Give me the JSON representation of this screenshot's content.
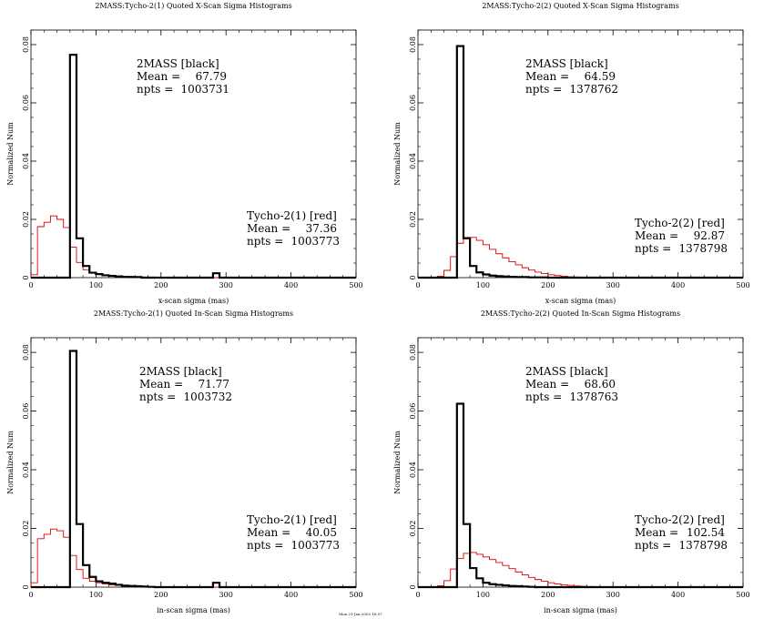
{
  "stamp": "Mon 21-Jan-2003 16:57",
  "chart_data": [
    {
      "type": "histogram",
      "title": "2MASS:Tycho-2(1) Quoted X-Scan Sigma Histograms",
      "xlabel": "x-scan sigma (mas)",
      "ylabel": "Normalized Num",
      "xlim": [
        0,
        500
      ],
      "ylim": [
        0,
        0.085
      ],
      "xticks": [
        "0",
        "100",
        "200",
        "300",
        "400",
        "500"
      ],
      "yticks": [
        "0",
        "0.02",
        "0.04",
        "0.06",
        "0.08"
      ],
      "bin_width": 10,
      "series": [
        {
          "name": "2MASS [black]",
          "color": "#000000",
          "values": [
            0,
            0,
            0,
            0,
            0,
            0,
            0.0765,
            0.0135,
            0.004,
            0.0017,
            0.0012,
            0.0008,
            0.0006,
            0.0004,
            0.0003,
            0.0002,
            0.0002,
            0,
            0,
            0,
            0,
            0,
            0,
            0,
            0,
            0,
            0,
            0,
            0.0015,
            0,
            0,
            0,
            0,
            0,
            0,
            0,
            0,
            0,
            0,
            0,
            0,
            0,
            0,
            0,
            0,
            0,
            0,
            0,
            0,
            0
          ]
        },
        {
          "name": "Tycho-2(1) [red]",
          "color": "#dd0000",
          "values": [
            0.001,
            0.0175,
            0.019,
            0.0212,
            0.02,
            0.0172,
            0.0105,
            0.0052,
            0.0027,
            0.0018,
            0.0013,
            0.001,
            0.0008,
            0.0006,
            0.0005,
            0.0004,
            0.0003,
            0.0002,
            0.0002,
            0.0001,
            0,
            0,
            0,
            0,
            0,
            0,
            0,
            0,
            0,
            0,
            0,
            0,
            0,
            0,
            0,
            0,
            0,
            0,
            0,
            0,
            0,
            0,
            0,
            0,
            0,
            0,
            0,
            0,
            0,
            0
          ]
        }
      ],
      "annotations": {
        "a": {
          "name": "2MASS [black]",
          "mean_label": "Mean   =",
          "mean": "67.79",
          "npts_label": "npts   =",
          "npts": "1003731"
        },
        "b": {
          "name": "Tycho-2(1) [red]",
          "mean_label": "Mean   =",
          "mean": "37.36",
          "npts_label": "npts   =",
          "npts": "1003773"
        }
      }
    },
    {
      "type": "histogram",
      "title": "2MASS:Tycho-2(2) Quoted X-Scan Sigma Histograms",
      "xlabel": "x-scan sigma (mas)",
      "ylabel": "Normalized Num",
      "xlim": [
        0,
        500
      ],
      "ylim": [
        0,
        0.085
      ],
      "xticks": [
        "0",
        "100",
        "200",
        "300",
        "400",
        "500"
      ],
      "yticks": [
        "0",
        "0.02",
        "0.04",
        "0.06",
        "0.08"
      ],
      "bin_width": 10,
      "series": [
        {
          "name": "2MASS [black]",
          "color": "#000000",
          "values": [
            0,
            0,
            0,
            0,
            0,
            0,
            0.0795,
            0.0135,
            0.004,
            0.0018,
            0.0011,
            0.0007,
            0.0005,
            0.0004,
            0.0003,
            0.0002,
            0.0002,
            0.0001,
            0.0001,
            0.0001,
            0,
            0,
            0,
            0,
            0,
            0,
            0,
            0,
            0,
            0,
            0,
            0,
            0,
            0,
            0,
            0,
            0,
            0,
            0,
            0,
            0,
            0,
            0,
            0,
            0,
            0,
            0,
            0,
            0,
            0
          ]
        },
        {
          "name": "Tycho-2(2) [red]",
          "color": "#dd0000",
          "values": [
            0,
            0,
            0,
            0.0005,
            0.0025,
            0.0072,
            0.0118,
            0.0138,
            0.0138,
            0.0128,
            0.0113,
            0.0097,
            0.0082,
            0.0068,
            0.0055,
            0.0044,
            0.0034,
            0.0026,
            0.0019,
            0.0014,
            0.001,
            0.0007,
            0.0005,
            0.0003,
            0.0002,
            0.0001,
            0,
            0,
            0,
            0,
            0,
            0,
            0,
            0,
            0,
            0,
            0,
            0,
            0,
            0,
            0,
            0,
            0,
            0,
            0,
            0,
            0,
            0,
            0,
            0
          ]
        }
      ],
      "annotations": {
        "a": {
          "name": "2MASS [black]",
          "mean_label": "Mean   =",
          "mean": "64.59",
          "npts_label": "npts   =",
          "npts": "1378762"
        },
        "b": {
          "name": "Tycho-2(2) [red]",
          "mean_label": "Mean   =",
          "mean": "92.87",
          "npts_label": "npts   =",
          "npts": "1378798"
        }
      }
    },
    {
      "type": "histogram",
      "title": "2MASS:Tycho-2(1) Quoted In-Scan Sigma Histograms",
      "xlabel": "in-scan sigma (mas)",
      "ylabel": "Normalized Num",
      "xlim": [
        0,
        500
      ],
      "ylim": [
        0,
        0.085
      ],
      "xticks": [
        "0",
        "100",
        "200",
        "300",
        "400",
        "500"
      ],
      "yticks": [
        "0",
        "0.02",
        "0.04",
        "0.06",
        "0.08"
      ],
      "bin_width": 10,
      "series": [
        {
          "name": "2MASS [black]",
          "color": "#000000",
          "values": [
            0,
            0,
            0,
            0,
            0,
            0,
            0.0805,
            0.0215,
            0.0075,
            0.0035,
            0.002,
            0.0015,
            0.0012,
            0.0008,
            0.0005,
            0.0004,
            0.0003,
            0.0002,
            0.0001,
            0,
            0,
            0,
            0,
            0,
            0,
            0,
            0,
            0,
            0.0015,
            0,
            0,
            0,
            0,
            0,
            0,
            0,
            0,
            0,
            0,
            0,
            0,
            0,
            0,
            0,
            0,
            0,
            0,
            0,
            0,
            0
          ]
        },
        {
          "name": "Tycho-2(1) [red]",
          "color": "#dd0000",
          "values": [
            0.0015,
            0.0165,
            0.018,
            0.0198,
            0.0192,
            0.017,
            0.0108,
            0.006,
            0.003,
            0.002,
            0.0015,
            0.0011,
            0.0008,
            0.0006,
            0.0005,
            0.0004,
            0.0003,
            0.0002,
            0.0001,
            0.0001,
            0,
            0,
            0,
            0,
            0,
            0,
            0,
            0,
            0,
            0,
            0,
            0,
            0,
            0,
            0,
            0,
            0,
            0,
            0,
            0,
            0,
            0,
            0,
            0,
            0,
            0,
            0,
            0,
            0,
            0
          ]
        }
      ],
      "annotations": {
        "a": {
          "name": "2MASS [black]",
          "mean_label": "Mean   =",
          "mean": "71.77",
          "npts_label": "npts   =",
          "npts": "1003732"
        },
        "b": {
          "name": "Tycho-2(1) [red]",
          "mean_label": "Mean   =",
          "mean": "40.05",
          "npts_label": "npts   =",
          "npts": "1003773"
        }
      }
    },
    {
      "type": "histogram",
      "title": "2MASS:Tycho-2(2) Quoted In-Scan Sigma Histograms",
      "xlabel": "in-scan sigma (mas)",
      "ylabel": "Normalized Num",
      "xlim": [
        0,
        500
      ],
      "ylim": [
        0,
        0.085
      ],
      "xticks": [
        "0",
        "100",
        "200",
        "300",
        "400",
        "500"
      ],
      "yticks": [
        "0",
        "0.02",
        "0.04",
        "0.06",
        "0.08"
      ],
      "bin_width": 10,
      "series": [
        {
          "name": "2MASS [black]",
          "color": "#000000",
          "values": [
            0,
            0,
            0,
            0,
            0,
            0,
            0.0625,
            0.0215,
            0.0065,
            0.003,
            0.0015,
            0.001,
            0.0008,
            0.0006,
            0.0004,
            0.0003,
            0.0002,
            0.0001,
            0,
            0,
            0,
            0,
            0,
            0,
            0,
            0,
            0,
            0,
            0,
            0,
            0,
            0,
            0,
            0,
            0,
            0,
            0,
            0,
            0,
            0,
            0,
            0,
            0,
            0,
            0,
            0,
            0,
            0,
            0,
            0
          ]
        },
        {
          "name": "Tycho-2(2) [red]",
          "color": "#dd0000",
          "values": [
            0,
            0,
            0,
            0.0005,
            0.0022,
            0.0062,
            0.0098,
            0.0115,
            0.0118,
            0.0112,
            0.0103,
            0.0094,
            0.0084,
            0.0074,
            0.0063,
            0.0052,
            0.0042,
            0.0033,
            0.0026,
            0.002,
            0.0015,
            0.0011,
            0.0008,
            0.0006,
            0.0004,
            0.0003,
            0.0002,
            0.0001,
            0,
            0,
            0,
            0,
            0,
            0,
            0,
            0,
            0,
            0,
            0,
            0,
            0,
            0,
            0,
            0,
            0,
            0,
            0,
            0,
            0,
            0
          ]
        }
      ],
      "annotations": {
        "a": {
          "name": "2MASS [black]",
          "mean_label": "Mean   =",
          "mean": "68.60",
          "npts_label": "npts   =",
          "npts": "1378763"
        },
        "b": {
          "name": "Tycho-2(2) [red]",
          "mean_label": "Mean   =",
          "mean": "102.54",
          "npts_label": "npts   =",
          "npts": "1378798"
        }
      }
    }
  ]
}
